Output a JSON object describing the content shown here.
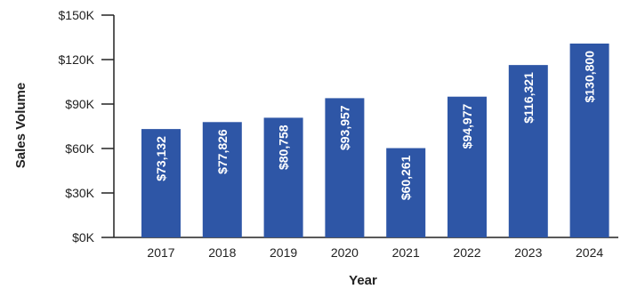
{
  "chart_data": {
    "type": "bar",
    "title": "",
    "xlabel": "Year",
    "ylabel": "Sales Volume",
    "categories": [
      "2017",
      "2018",
      "2019",
      "2020",
      "2021",
      "2022",
      "2023",
      "2024"
    ],
    "values": [
      73132,
      77826,
      80758,
      93957,
      60261,
      94977,
      116321,
      130800
    ],
    "data_labels": [
      "$73,132",
      "$77,826",
      "$80,758",
      "$93,957",
      "$60,261",
      "$94,977",
      "$116,321",
      "$130,800"
    ],
    "ylim": [
      0,
      150000
    ],
    "yticks": [
      0,
      30000,
      60000,
      90000,
      120000,
      150000
    ],
    "ytick_labels": [
      "$0K",
      "$30K",
      "$60K",
      "$90K",
      "$120K",
      "$150K"
    ],
    "grid": false,
    "legend": "none",
    "bar_color": "#2E56A6",
    "axis_color": "#222222"
  }
}
